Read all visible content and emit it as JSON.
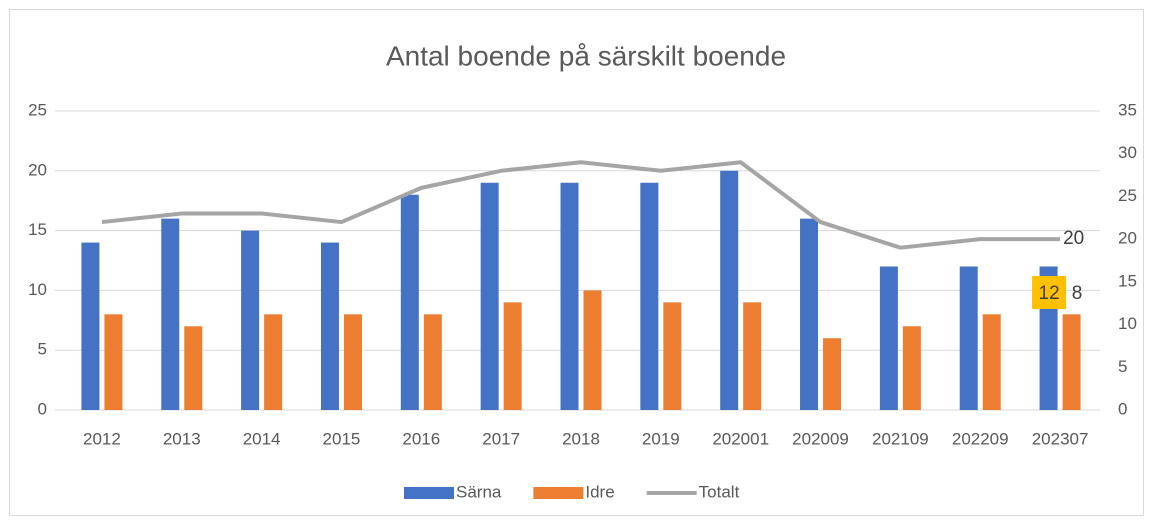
{
  "chart_data": {
    "type": "bar-line",
    "title": "Antal boende på särskilt boende",
    "categories": [
      "2012",
      "2013",
      "2014",
      "2015",
      "2016",
      "2017",
      "2018",
      "2019",
      "202001",
      "202009",
      "202109",
      "202209",
      "202307"
    ],
    "series": [
      {
        "name": "Särna",
        "type": "bar",
        "color": "#4472c4",
        "values": [
          14,
          16,
          15,
          14,
          18,
          19,
          19,
          19,
          20,
          16,
          12,
          12,
          12
        ],
        "label_last": true,
        "label_highlight": "#ffc000"
      },
      {
        "name": "Idre",
        "type": "bar",
        "color": "#ed7d31",
        "values": [
          8,
          7,
          8,
          8,
          8,
          9,
          10,
          9,
          9,
          6,
          7,
          8,
          8
        ],
        "label_last": true
      },
      {
        "name": "Totalt",
        "type": "line",
        "axis": "y2",
        "color": "#a5a5a5",
        "values": [
          22,
          23,
          23,
          22,
          26,
          28,
          29,
          28,
          29,
          22,
          19,
          20,
          20
        ],
        "label_last": true
      }
    ],
    "ylim": [
      0,
      25
    ],
    "yticks": [
      0,
      5,
      10,
      15,
      20,
      25
    ],
    "y2lim": [
      0,
      35
    ],
    "y2ticks": [
      0,
      5,
      10,
      15,
      20,
      25,
      30,
      35
    ],
    "grid": true,
    "legend": "bottom"
  }
}
